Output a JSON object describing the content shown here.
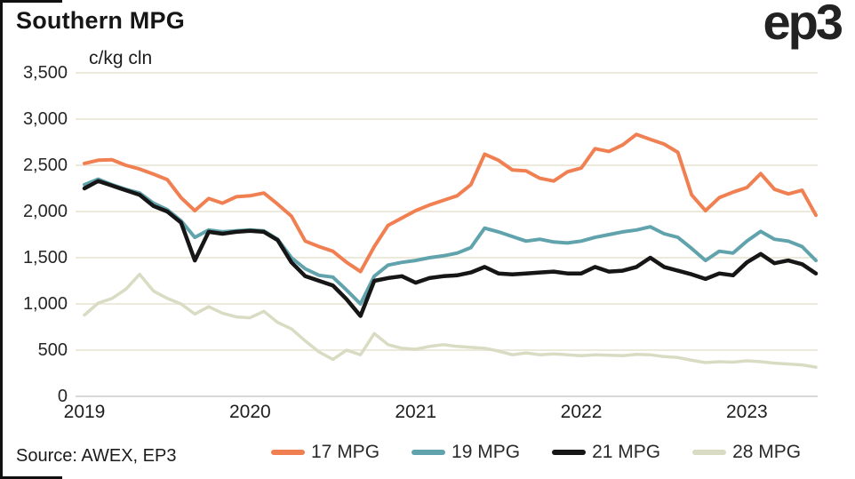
{
  "header": {
    "title": "Southern MPG",
    "logo_text": "ep3"
  },
  "footer": {
    "source": "Source: AWEX, EP3"
  },
  "chart_data": {
    "type": "line",
    "title": "Southern MPG",
    "unit_label": "c/kg cln",
    "ylabel": "c/kg cln",
    "xlabel": "",
    "grid": true,
    "legend_position": "bottom",
    "ylim": [
      0,
      3500
    ],
    "ytick_values": [
      0,
      500,
      1000,
      1500,
      2000,
      2500,
      3000,
      3500
    ],
    "ytick_labels": [
      "0",
      "500",
      "1,000",
      "1,500",
      "2,000",
      "2,500",
      "3,000",
      "3,500"
    ],
    "xtick_labels": [
      "2019",
      "2020",
      "2021",
      "2022",
      "2023"
    ],
    "x_start": "2019-01",
    "x_end": "2023-06",
    "x_frequency": "monthly",
    "colors": {
      "grid": "#edeadc",
      "axis": "#d8d8d8",
      "background": "#ffffff"
    },
    "series": [
      {
        "name": "17 MPG",
        "color": "#f08052",
        "values": [
          2520,
          2555,
          2560,
          2500,
          2460,
          2405,
          2345,
          2150,
          2010,
          2140,
          2090,
          2160,
          2170,
          2200,
          2080,
          1950,
          1680,
          1620,
          1570,
          1450,
          1350,
          1620,
          1850,
          1930,
          2010,
          2070,
          2120,
          2170,
          2290,
          2620,
          2555,
          2450,
          2440,
          2360,
          2330,
          2430,
          2470,
          2680,
          2650,
          2720,
          2835,
          2780,
          2730,
          2640,
          2180,
          2010,
          2150,
          2210,
          2260,
          2410,
          2240,
          2190,
          2230,
          1960
        ]
      },
      {
        "name": "19 MPG",
        "color": "#61a3ac",
        "values": [
          2290,
          2350,
          2290,
          2240,
          2200,
          2090,
          2020,
          1900,
          1720,
          1800,
          1780,
          1790,
          1800,
          1790,
          1700,
          1500,
          1380,
          1310,
          1290,
          1150,
          1000,
          1300,
          1420,
          1450,
          1470,
          1500,
          1520,
          1550,
          1610,
          1820,
          1780,
          1730,
          1680,
          1700,
          1670,
          1660,
          1680,
          1720,
          1750,
          1780,
          1800,
          1835,
          1760,
          1720,
          1600,
          1470,
          1570,
          1550,
          1680,
          1785,
          1700,
          1680,
          1620,
          1470
        ]
      },
      {
        "name": "21 MPG",
        "color": "#161616",
        "values": [
          2250,
          2330,
          2280,
          2230,
          2180,
          2060,
          2000,
          1880,
          1470,
          1780,
          1760,
          1780,
          1790,
          1780,
          1690,
          1450,
          1300,
          1250,
          1200,
          1050,
          870,
          1250,
          1280,
          1300,
          1230,
          1280,
          1300,
          1310,
          1340,
          1400,
          1330,
          1320,
          1330,
          1340,
          1350,
          1330,
          1330,
          1400,
          1350,
          1360,
          1400,
          1500,
          1400,
          1360,
          1320,
          1270,
          1330,
          1310,
          1450,
          1540,
          1440,
          1470,
          1430,
          1330
        ]
      },
      {
        "name": "28 MPG",
        "color": "#d9dcc3",
        "values": [
          880,
          1010,
          1060,
          1160,
          1320,
          1140,
          1060,
          1000,
          890,
          970,
          900,
          860,
          850,
          920,
          800,
          730,
          600,
          480,
          400,
          500,
          450,
          680,
          560,
          520,
          510,
          540,
          560,
          540,
          530,
          520,
          490,
          450,
          470,
          450,
          460,
          450,
          440,
          450,
          445,
          440,
          455,
          450,
          430,
          420,
          390,
          365,
          375,
          370,
          385,
          375,
          360,
          350,
          340,
          315
        ]
      }
    ]
  }
}
